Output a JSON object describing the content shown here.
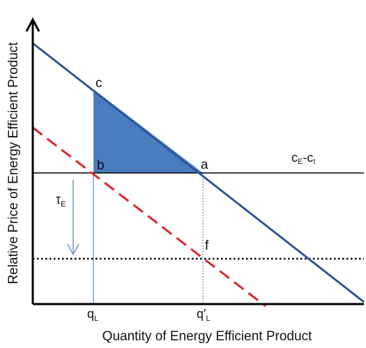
{
  "chart_data": {
    "type": "line",
    "title": "",
    "xlabel": "Quantity of Energy Efficient Product",
    "ylabel": "Relative Price of Energy Efficient Product",
    "x_ticks": [
      {
        "main": "q",
        "sub": "L"
      },
      {
        "main": "q'",
        "sub": "L"
      }
    ],
    "series": [],
    "horizontal_lines": [
      {
        "label_main": "c",
        "label_sub": "E",
        "label_sep": "-",
        "label_main2": "c",
        "label_sub2": "I"
      }
    ],
    "points": [
      {
        "label": "a"
      },
      {
        "label": "b"
      },
      {
        "label": "c"
      },
      {
        "label": "f"
      }
    ],
    "annotations": [
      {
        "main": "τ",
        "sub": "E"
      }
    ],
    "grid": false,
    "colors": {
      "demand": "#2e5597",
      "shifted_demand": "#d9262b",
      "shaded_area": "#4a7cc0",
      "guide_lines": "#9fb8d8",
      "axes": "#000000"
    }
  }
}
